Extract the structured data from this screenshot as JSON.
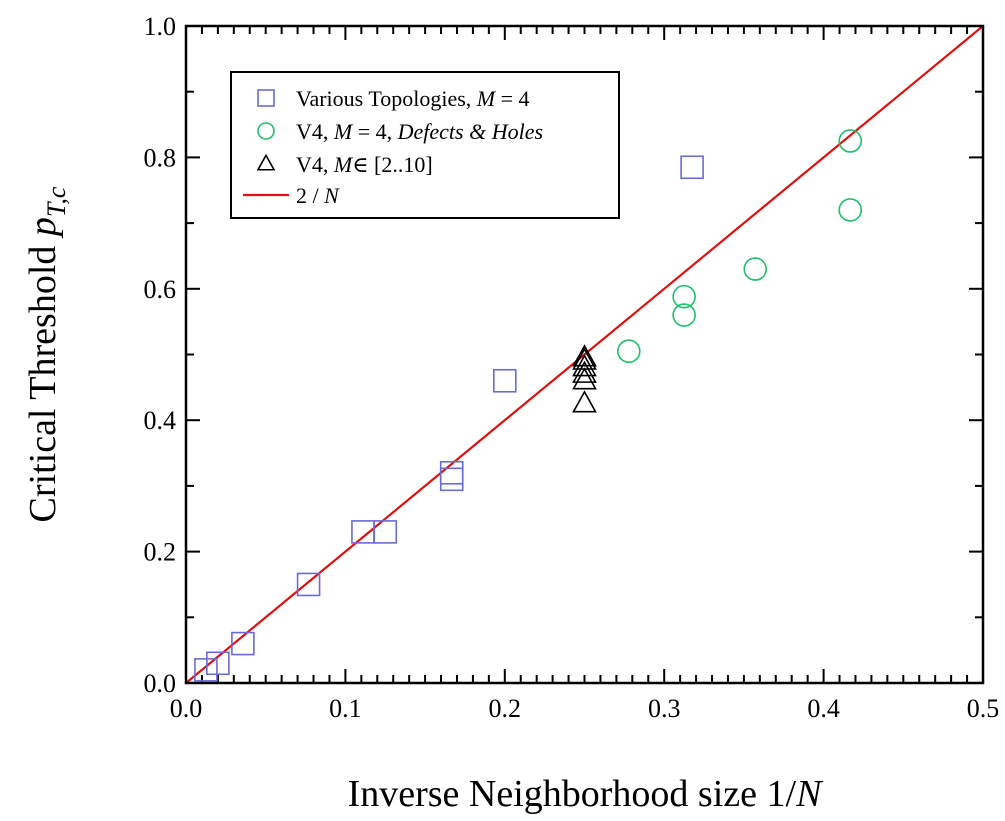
{
  "chart_data": {
    "type": "scatter",
    "title": "",
    "xlabel_parts": [
      "Inverse Neighborhood size 1/",
      "N"
    ],
    "ylabel_parts": [
      "Critical Threshold ",
      "p",
      "T,c"
    ],
    "xlim": [
      0.0,
      0.5
    ],
    "ylim": [
      0.0,
      1.0
    ],
    "xticks": [
      "0.0",
      "0.1",
      "0.2",
      "0.3",
      "0.4",
      "0.5"
    ],
    "yticks": [
      "0.0",
      "0.2",
      "0.4",
      "0.6",
      "0.8",
      "1.0"
    ],
    "grid": false,
    "legend_position": "top-left",
    "series": [
      {
        "label_parts": [
          "Various Topologies, ",
          "M",
          " = 4"
        ],
        "marker": "square",
        "color": "#6b6bd6",
        "points": [
          [
            0.0125,
            0.02
          ],
          [
            0.02,
            0.03
          ],
          [
            0.0357,
            0.06
          ],
          [
            0.0769,
            0.15
          ],
          [
            0.111,
            0.23
          ],
          [
            0.125,
            0.23
          ],
          [
            0.1667,
            0.31
          ],
          [
            0.1667,
            0.32
          ],
          [
            0.2,
            0.46
          ],
          [
            0.3175,
            0.785
          ]
        ]
      },
      {
        "label_parts": [
          "V4, ",
          "M",
          " = 4, ",
          "Defects & Holes"
        ],
        "marker": "circle",
        "color": "#1fbf6b",
        "points": [
          [
            0.2778,
            0.505
          ],
          [
            0.3125,
            0.56
          ],
          [
            0.3125,
            0.588
          ],
          [
            0.3571,
            0.63
          ],
          [
            0.4167,
            0.72
          ],
          [
            0.4167,
            0.825
          ]
        ]
      },
      {
        "label_parts": [
          "V4, ",
          "M",
          "∈ [2..10]"
        ],
        "marker": "triangle",
        "color": "#000000",
        "points": [
          [
            0.25,
            0.425
          ],
          [
            0.25,
            0.46
          ],
          [
            0.25,
            0.47
          ],
          [
            0.25,
            0.48
          ],
          [
            0.25,
            0.49
          ],
          [
            0.25,
            0.495
          ]
        ]
      },
      {
        "label_parts": [
          "2 / ",
          "N"
        ],
        "marker": "line",
        "color": "#dd1111",
        "points": [
          [
            0.0,
            0.0
          ],
          [
            0.5,
            1.0
          ]
        ]
      }
    ]
  }
}
